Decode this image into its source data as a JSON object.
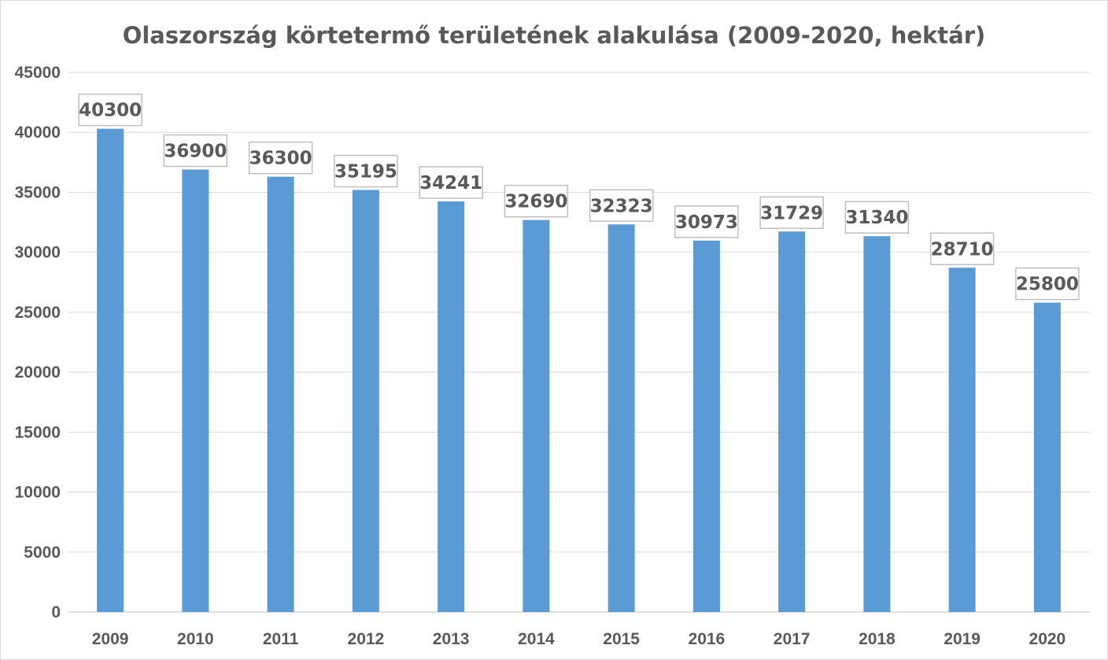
{
  "chart_data": {
    "type": "bar",
    "title": "Olaszország körtetermő területének alakulása (2009-2020, hektár)",
    "categories": [
      "2009",
      "2010",
      "2011",
      "2012",
      "2013",
      "2014",
      "2015",
      "2016",
      "2017",
      "2018",
      "2019",
      "2020"
    ],
    "values": [
      40300,
      36900,
      36300,
      35195,
      34241,
      32690,
      32323,
      30973,
      31729,
      31340,
      28710,
      25800
    ],
    "data_labels": [
      "40300",
      "36900",
      "36300",
      "35195",
      "34241",
      "32690",
      "32323",
      "30973",
      "31729",
      "31340",
      "28710",
      "25800"
    ],
    "y_ticks": [
      "0",
      "5000",
      "10000",
      "15000",
      "20000",
      "25000",
      "30000",
      "35000",
      "40000",
      "45000"
    ],
    "ylim": [
      0,
      45000
    ],
    "grid": true,
    "legend": "none",
    "bar_color": "#5b9bd5"
  }
}
